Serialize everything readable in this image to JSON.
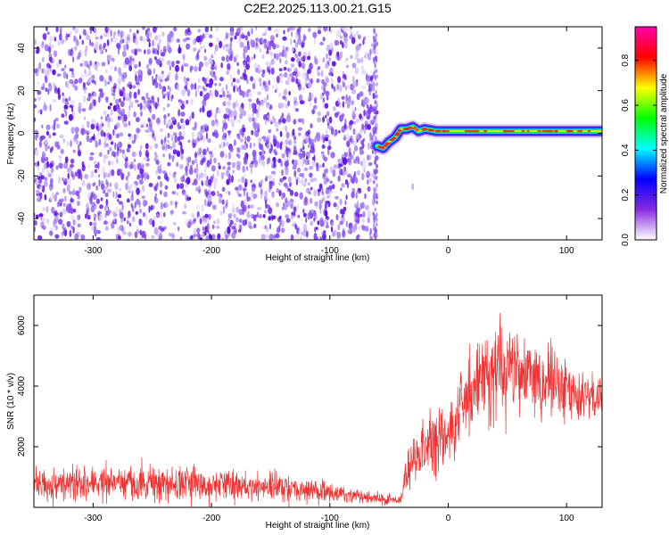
{
  "figure": {
    "title": "C2E2.2025.113.00.21.G15"
  },
  "chart_data": [
    {
      "type": "heatmap",
      "xlabel": "Height of straight line (km)",
      "ylabel": "Frequency (Hz)",
      "xlim": [
        -350,
        130
      ],
      "ylim": [
        -50,
        50
      ],
      "xticks": [
        -300,
        -200,
        -100,
        0,
        100
      ],
      "yticks": [
        -40,
        -20,
        0,
        20,
        40
      ],
      "grid": false,
      "noise_region_x": [
        -350,
        -60
      ],
      "signal_track": [
        {
          "x": -60,
          "y": -6
        },
        {
          "x": -55,
          "y": -7
        },
        {
          "x": -50,
          "y": -4
        },
        {
          "x": -45,
          "y": -2
        },
        {
          "x": -40,
          "y": 2
        },
        {
          "x": -35,
          "y": 2
        },
        {
          "x": -30,
          "y": 3
        },
        {
          "x": -25,
          "y": 1
        },
        {
          "x": -20,
          "y": 2
        },
        {
          "x": -10,
          "y": 1
        },
        {
          "x": 0,
          "y": 1
        },
        {
          "x": 20,
          "y": 1
        },
        {
          "x": 40,
          "y": 1
        },
        {
          "x": 60,
          "y": 1
        },
        {
          "x": 80,
          "y": 1
        },
        {
          "x": 100,
          "y": 1
        },
        {
          "x": 130,
          "y": 1
        }
      ],
      "colorbar": {
        "label": "Normalized spectral amplitude",
        "range": [
          0,
          0.95
        ],
        "ticks": [
          0.0,
          0.2,
          0.4,
          0.6,
          0.8
        ],
        "tick_labels": [
          "0.0",
          "0.2",
          "0.4",
          "0.6",
          "0.8"
        ],
        "colors": [
          "#ffffff",
          "#8a2be2",
          "#0000ff",
          "#00ffff",
          "#00ff00",
          "#ffff00",
          "#ff0000",
          "#ff00aa"
        ]
      },
      "colors": {
        "noise": "#7b3ff0",
        "track_core": "#ff2020"
      }
    },
    {
      "type": "line",
      "xlabel": "Height of straight line (km)",
      "ylabel": "SNR (10 * v/v)",
      "xlim": [
        -350,
        130
      ],
      "ylim": [
        0,
        7000
      ],
      "xticks": [
        -300,
        -200,
        -100,
        0,
        100
      ],
      "yticks": [
        2000,
        4000,
        6000
      ],
      "grid": false,
      "series": [
        {
          "color": "#ee3333",
          "envelope": [
            {
              "x": -350,
              "low": 150,
              "high": 1350
            },
            {
              "x": -300,
              "low": 150,
              "high": 1400
            },
            {
              "x": -250,
              "low": 150,
              "high": 1450
            },
            {
              "x": -200,
              "low": 150,
              "high": 1350
            },
            {
              "x": -150,
              "low": 150,
              "high": 1250
            },
            {
              "x": -120,
              "low": 100,
              "high": 1050
            },
            {
              "x": -100,
              "low": 100,
              "high": 850
            },
            {
              "x": -80,
              "low": 100,
              "high": 650
            },
            {
              "x": -60,
              "low": 80,
              "high": 500
            },
            {
              "x": -40,
              "low": 80,
              "high": 400
            },
            {
              "x": -36,
              "low": 200,
              "high": 1700
            },
            {
              "x": -30,
              "low": 700,
              "high": 2500
            },
            {
              "x": -20,
              "low": 900,
              "high": 3200
            },
            {
              "x": -10,
              "low": 700,
              "high": 3500
            },
            {
              "x": 0,
              "low": 1200,
              "high": 3500
            },
            {
              "x": 10,
              "low": 1800,
              "high": 4800
            },
            {
              "x": 20,
              "low": 2400,
              "high": 5600
            },
            {
              "x": 40,
              "low": 2700,
              "high": 6300
            },
            {
              "x": 55,
              "low": 2900,
              "high": 6500
            },
            {
              "x": 70,
              "low": 2800,
              "high": 5600
            },
            {
              "x": 90,
              "low": 2600,
              "high": 5200
            },
            {
              "x": 110,
              "low": 2800,
              "high": 4700
            },
            {
              "x": 130,
              "low": 2900,
              "high": 4300
            }
          ]
        }
      ]
    }
  ]
}
